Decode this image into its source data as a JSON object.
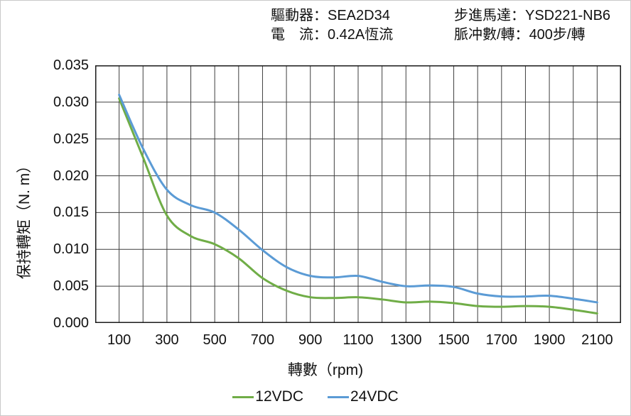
{
  "header": {
    "fields": [
      {
        "label": "驅動器：",
        "value": "SEA2D34"
      },
      {
        "label": "電　流：",
        "value": "0.42A恆流"
      },
      {
        "label": "步進馬達：",
        "value": "YSD221-NB6"
      },
      {
        "label": "脈冲數/轉：",
        "value": "400步/轉"
      }
    ]
  },
  "chart_data": {
    "type": "line",
    "title": "",
    "xlabel": "轉數（rpm)",
    "ylabel": "保持轉矩（N. m）",
    "xlim": [
      0,
      2200
    ],
    "ylim": [
      0,
      0.035
    ],
    "grid": true,
    "x_gridline_step": 100,
    "y_gridline_step": 0.005,
    "x_tick_labels": [
      "100",
      "300",
      "500",
      "700",
      "900",
      "1100",
      "1300",
      "1500",
      "1700",
      "1900",
      "2100"
    ],
    "y_tick_labels": [
      "0.000",
      "0.005",
      "0.010",
      "0.015",
      "0.020",
      "0.025",
      "0.030",
      "0.035"
    ],
    "legend_position": "bottom",
    "x": [
      100,
      200,
      300,
      400,
      500,
      600,
      700,
      800,
      900,
      1000,
      1100,
      1200,
      1300,
      1400,
      1500,
      1600,
      1700,
      1800,
      1900,
      2000,
      2100
    ],
    "series": [
      {
        "name": "12VDC",
        "color": "#70AD47",
        "values": [
          0.0305,
          0.0225,
          0.0146,
          0.0118,
          0.0107,
          0.0088,
          0.0061,
          0.0044,
          0.0035,
          0.0034,
          0.0035,
          0.0032,
          0.0028,
          0.0029,
          0.0027,
          0.0023,
          0.0022,
          0.0023,
          0.0022,
          0.0018,
          0.0013
        ]
      },
      {
        "name": "24VDC",
        "color": "#5B9BD5",
        "values": [
          0.031,
          0.0237,
          0.0181,
          0.016,
          0.015,
          0.0127,
          0.0099,
          0.0076,
          0.0064,
          0.0062,
          0.0064,
          0.0056,
          0.005,
          0.0051,
          0.0049,
          0.004,
          0.0036,
          0.0036,
          0.0037,
          0.0033,
          0.0028
        ]
      }
    ],
    "style": {
      "grid_color": "#3f3f3f",
      "border_color": "#1a1a1a",
      "line_width": 3
    }
  }
}
